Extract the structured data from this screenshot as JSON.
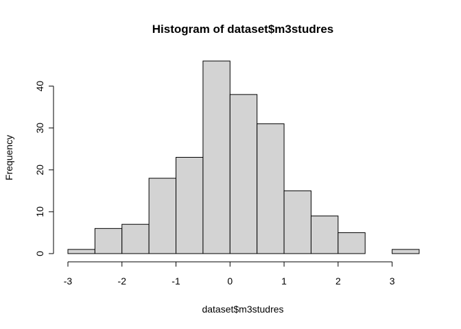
{
  "chart_data": {
    "type": "bar",
    "title": "Histogram of dataset$m3studres",
    "xlabel": "dataset$m3studres",
    "ylabel": "Frequency",
    "bins": [
      {
        "start": -3.0,
        "end": -2.5,
        "count": 1
      },
      {
        "start": -2.5,
        "end": -2.0,
        "count": 6
      },
      {
        "start": -2.0,
        "end": -1.5,
        "count": 7
      },
      {
        "start": -1.5,
        "end": -1.0,
        "count": 18
      },
      {
        "start": -1.0,
        "end": -0.5,
        "count": 23
      },
      {
        "start": -0.5,
        "end": 0.0,
        "count": 46
      },
      {
        "start": 0.0,
        "end": 0.5,
        "count": 38
      },
      {
        "start": 0.5,
        "end": 1.0,
        "count": 31
      },
      {
        "start": 1.0,
        "end": 1.5,
        "count": 15
      },
      {
        "start": 1.5,
        "end": 2.0,
        "count": 9
      },
      {
        "start": 2.0,
        "end": 2.5,
        "count": 5
      },
      {
        "start": 2.5,
        "end": 3.0,
        "count": 0
      },
      {
        "start": 3.0,
        "end": 3.5,
        "count": 1
      }
    ],
    "xticks": [
      "-3",
      "-2",
      "-1",
      "0",
      "1",
      "2",
      "3"
    ],
    "yticks": [
      "0",
      "10",
      "20",
      "30",
      "40"
    ],
    "xlim": [
      -3,
      3.5
    ],
    "ylim": [
      0,
      46
    ],
    "grid": false,
    "colors": {
      "bar_fill": "#d3d3d3",
      "bar_stroke": "#000000"
    }
  }
}
